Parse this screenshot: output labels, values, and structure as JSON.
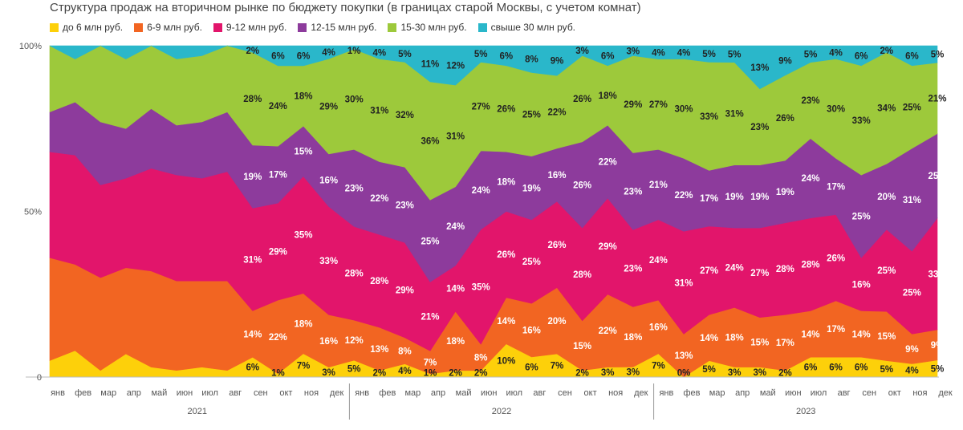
{
  "chart_data": {
    "type": "area",
    "stacked": true,
    "title": "Структура продаж на вторичном рынке по бюджету покупки (в границах старой Москвы, с учетом комнат)",
    "ylim": [
      0,
      100
    ],
    "y_ticks": [
      "0",
      "50%",
      "100%"
    ],
    "months": [
      "янв",
      "фев",
      "мар",
      "апр",
      "май",
      "июн",
      "июл",
      "авг",
      "сен",
      "окт",
      "ноя",
      "дек",
      "янв",
      "фев",
      "мар",
      "апр",
      "май",
      "июн",
      "июл",
      "авг",
      "сен",
      "окт",
      "ноя",
      "дек",
      "янв",
      "фев",
      "мар",
      "апр",
      "май",
      "июн",
      "июл",
      "авг",
      "сен",
      "окт",
      "ноя",
      "дек"
    ],
    "years": [
      "2021",
      "2022",
      "2023"
    ],
    "colors": [
      "#fdd00a",
      "#f26522",
      "#e2156b",
      "#8d3b9c",
      "#9dc93b",
      "#2ab7ca"
    ],
    "series": [
      {
        "name": "до 6 млн руб.",
        "values": [
          5,
          8,
          2,
          7,
          3,
          2,
          3,
          2,
          6,
          1,
          7,
          3,
          5,
          2,
          4,
          1,
          2,
          2,
          10,
          6,
          7,
          2,
          3,
          3,
          7,
          0,
          5,
          3,
          3,
          2,
          6,
          6,
          6,
          5,
          4,
          5
        ]
      },
      {
        "name": "6-9 млн руб.",
        "values": [
          31,
          26,
          28,
          26,
          29,
          27,
          26,
          27,
          14,
          22,
          18,
          16,
          12,
          13,
          8,
          7,
          18,
          8,
          14,
          16,
          20,
          15,
          22,
          18,
          16,
          13,
          14,
          18,
          15,
          17,
          14,
          17,
          14,
          15,
          9,
          9
        ]
      },
      {
        "name": "9-12 млн руб.",
        "values": [
          32,
          33,
          28,
          27,
          31,
          32,
          31,
          33,
          31,
          29,
          35,
          33,
          28,
          28,
          29,
          21,
          14,
          35,
          26,
          25,
          26,
          28,
          29,
          23,
          24,
          31,
          27,
          24,
          27,
          28,
          28,
          26,
          16,
          25,
          25,
          33
        ]
      },
      {
        "name": "12-15 млн руб.",
        "values": [
          12,
          16,
          19,
          15,
          18,
          15,
          17,
          18,
          19,
          17,
          15,
          16,
          23,
          22,
          23,
          25,
          24,
          24,
          18,
          19,
          16,
          26,
          22,
          23,
          21,
          22,
          17,
          19,
          19,
          19,
          24,
          17,
          25,
          20,
          31,
          25
        ]
      },
      {
        "name": "15-30 млн руб.",
        "values": [
          20,
          13,
          23,
          21,
          19,
          20,
          20,
          20,
          28,
          24,
          18,
          29,
          30,
          31,
          32,
          36,
          31,
          27,
          26,
          25,
          22,
          26,
          18,
          29,
          27,
          30,
          33,
          31,
          23,
          26,
          23,
          30,
          33,
          34,
          25,
          21
        ]
      },
      {
        "name": "свыше 30 млн руб.",
        "values": [
          0,
          4,
          0,
          4,
          0,
          4,
          3,
          0,
          2,
          6,
          6,
          4,
          1,
          4,
          5,
          11,
          12,
          5,
          6,
          8,
          9,
          3,
          6,
          3,
          4,
          4,
          5,
          5,
          13,
          9,
          5,
          4,
          6,
          2,
          6,
          5
        ]
      }
    ],
    "labels_from_month": 8,
    "label_colors": [
      "#222222",
      "#ffffff",
      "#ffffff",
      "#ffffff",
      "#222222",
      "#222222"
    ],
    "grid": false
  }
}
